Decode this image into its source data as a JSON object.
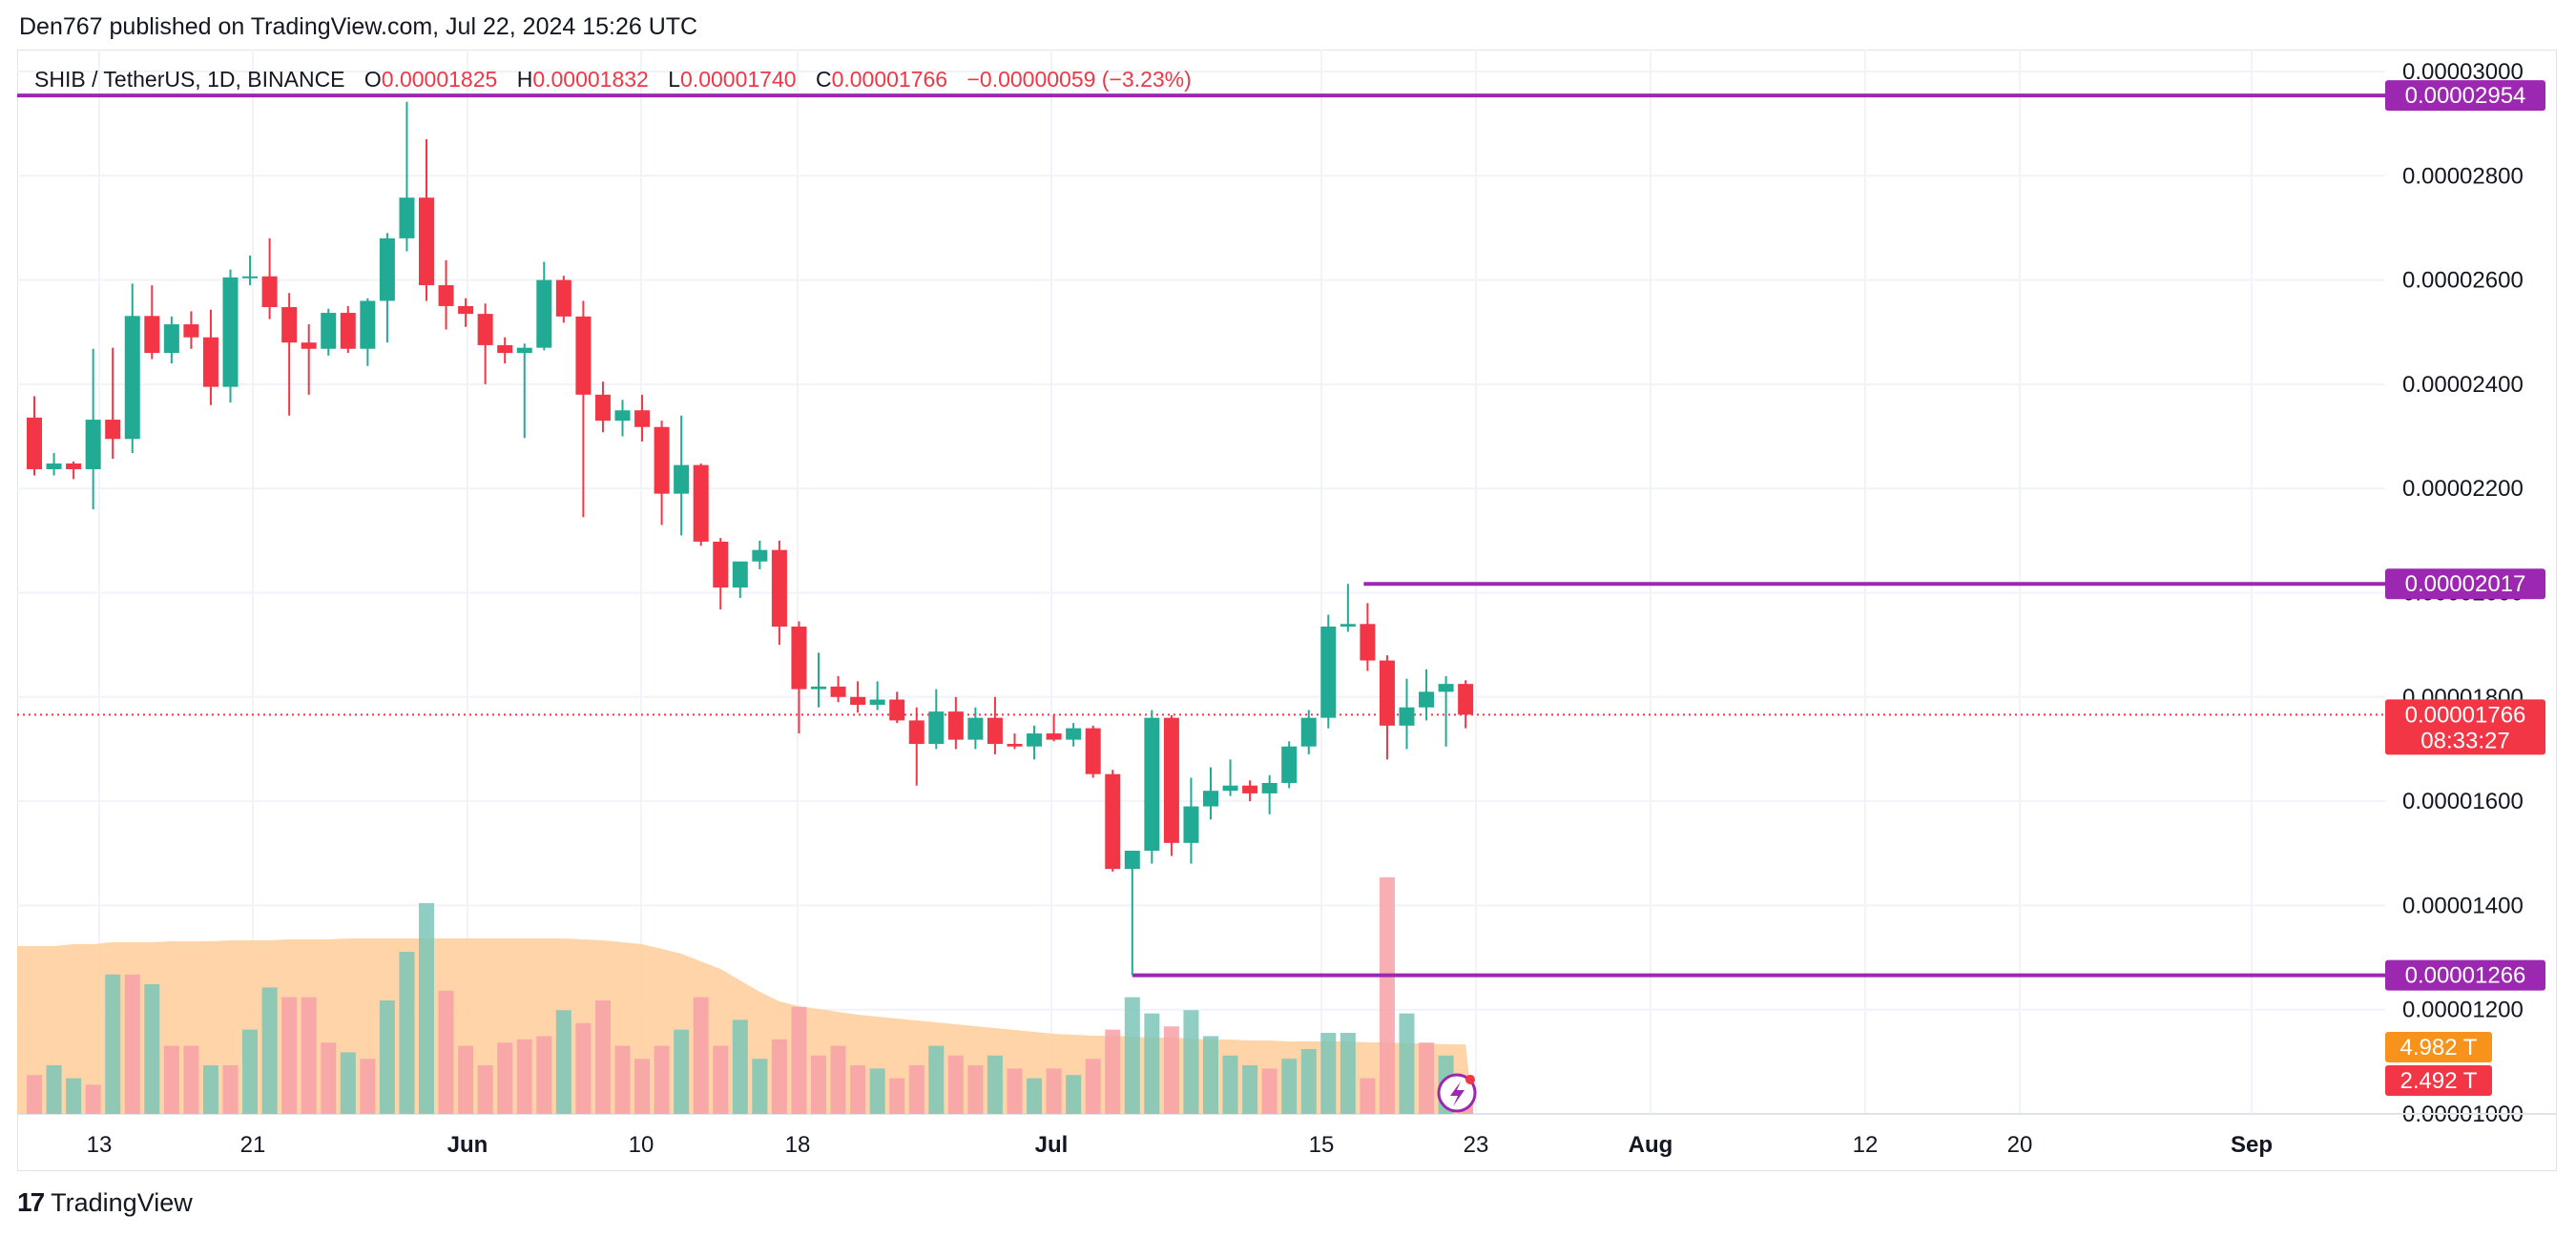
{
  "header": {
    "text": "Den767 published on TradingView.com, Jul 22, 2024 15:26 UTC"
  },
  "legend": {
    "symbol": "SHIB / TetherUS, 1D, BINANCE",
    "o_label": "O",
    "o_value": "0.00001825",
    "h_label": "H",
    "h_value": "0.00001832",
    "l_label": "L",
    "l_value": "0.00001740",
    "c_label": "C",
    "c_value": "0.00001766",
    "change": "−0.00000059 (−3.23%)"
  },
  "footer": {
    "brand": "TradingView",
    "logo_glyph": "17"
  },
  "colors": {
    "up": "#22ab94",
    "down": "#f23645",
    "level": "#9c27b0",
    "volume_ma": "#ffcc99"
  },
  "chart_data": {
    "type": "candlestick",
    "price_axis": {
      "ticks": [
        "0.00003000",
        "0.00002800",
        "0.00002600",
        "0.00002400",
        "0.00002200",
        "0.00002000",
        "0.00001800",
        "0.00001600",
        "0.00001400",
        "0.00001200",
        "0.00001000"
      ],
      "range": [
        1e-05,
        3e-05
      ]
    },
    "x_axis": {
      "labels": [
        "13",
        "21",
        "Jun",
        "10",
        "18",
        "Jul",
        "15",
        "23",
        "Aug",
        "12",
        "20",
        "Sep"
      ]
    },
    "levels": [
      {
        "name": "resistance-high",
        "value": 2.954e-05,
        "label": "0.00002954"
      },
      {
        "name": "resistance-mid",
        "value": 2.017e-05,
        "label": "0.00002017"
      },
      {
        "name": "support",
        "value": 1.266e-05,
        "label": "0.00001266"
      }
    ],
    "last_price": {
      "value": 1.766e-05,
      "label": "0.00001766",
      "countdown": "08:33:27"
    },
    "volume_labels": {
      "ma": "4.982 T",
      "volume": "2.492 T"
    },
    "candles": [
      {
        "o": 2.336e-05,
        "h": 2.377e-05,
        "l": 2.225e-05,
        "c": 2.237e-05
      },
      {
        "o": 2.237e-05,
        "h": 2.268e-05,
        "l": 2.225e-05,
        "c": 2.248e-05
      },
      {
        "o": 2.248e-05,
        "h": 2.252e-05,
        "l": 2.218e-05,
        "c": 2.237e-05
      },
      {
        "o": 2.237e-05,
        "h": 2.468e-05,
        "l": 2.16e-05,
        "c": 2.332e-05
      },
      {
        "o": 2.332e-05,
        "h": 2.47e-05,
        "l": 2.257e-05,
        "c": 2.295e-05
      },
      {
        "o": 2.295e-05,
        "h": 2.593e-05,
        "l": 2.268e-05,
        "c": 2.531e-05
      },
      {
        "o": 2.531e-05,
        "h": 2.59e-05,
        "l": 2.448e-05,
        "c": 2.46e-05
      },
      {
        "o": 2.46e-05,
        "h": 2.53e-05,
        "l": 2.44e-05,
        "c": 2.515e-05
      },
      {
        "o": 2.515e-05,
        "h": 2.54e-05,
        "l": 2.468e-05,
        "c": 2.49e-05
      },
      {
        "o": 2.49e-05,
        "h": 2.543e-05,
        "l": 2.36e-05,
        "c": 2.395e-05
      },
      {
        "o": 2.395e-05,
        "h": 2.62e-05,
        "l": 2.365e-05,
        "c": 2.605e-05
      },
      {
        "o": 2.605e-05,
        "h": 2.647e-05,
        "l": 2.59e-05,
        "c": 2.607e-05
      },
      {
        "o": 2.607e-05,
        "h": 2.68e-05,
        "l": 2.525e-05,
        "c": 2.548e-05
      },
      {
        "o": 2.548e-05,
        "h": 2.575e-05,
        "l": 2.34e-05,
        "c": 2.48e-05
      },
      {
        "o": 2.48e-05,
        "h": 2.515e-05,
        "l": 2.38e-05,
        "c": 2.468e-05
      },
      {
        "o": 2.468e-05,
        "h": 2.545e-05,
        "l": 2.455e-05,
        "c": 2.537e-05
      },
      {
        "o": 2.537e-05,
        "h": 2.55e-05,
        "l": 2.46e-05,
        "c": 2.468e-05
      },
      {
        "o": 2.468e-05,
        "h": 2.565e-05,
        "l": 2.435e-05,
        "c": 2.56e-05
      },
      {
        "o": 2.56e-05,
        "h": 2.69e-05,
        "l": 2.48e-05,
        "c": 2.68e-05
      },
      {
        "o": 2.68e-05,
        "h": 2.942e-05,
        "l": 2.655e-05,
        "c": 2.758e-05
      },
      {
        "o": 2.758e-05,
        "h": 2.87e-05,
        "l": 2.56e-05,
        "c": 2.59e-05
      },
      {
        "o": 2.59e-05,
        "h": 2.638e-05,
        "l": 2.505e-05,
        "c": 2.55e-05
      },
      {
        "o": 2.55e-05,
        "h": 2.565e-05,
        "l": 2.51e-05,
        "c": 2.535e-05
      },
      {
        "o": 2.535e-05,
        "h": 2.555e-05,
        "l": 2.4e-05,
        "c": 2.475e-05
      },
      {
        "o": 2.475e-05,
        "h": 2.49e-05,
        "l": 2.44e-05,
        "c": 2.46e-05
      },
      {
        "o": 2.46e-05,
        "h": 2.478e-05,
        "l": 2.297e-05,
        "c": 2.47e-05
      },
      {
        "o": 2.47e-05,
        "h": 2.635e-05,
        "l": 2.465e-05,
        "c": 2.6e-05
      },
      {
        "o": 2.6e-05,
        "h": 2.608e-05,
        "l": 2.518e-05,
        "c": 2.53e-05
      },
      {
        "o": 2.53e-05,
        "h": 2.56e-05,
        "l": 2.145e-05,
        "c": 2.38e-05
      },
      {
        "o": 2.38e-05,
        "h": 2.405e-05,
        "l": 2.308e-05,
        "c": 2.33e-05
      },
      {
        "o": 2.33e-05,
        "h": 2.37e-05,
        "l": 2.3e-05,
        "c": 2.35e-05
      },
      {
        "o": 2.35e-05,
        "h": 2.38e-05,
        "l": 2.29e-05,
        "c": 2.318e-05
      },
      {
        "o": 2.318e-05,
        "h": 2.33e-05,
        "l": 2.13e-05,
        "c": 2.19e-05
      },
      {
        "o": 2.19e-05,
        "h": 2.34e-05,
        "l": 2.11e-05,
        "c": 2.245e-05
      },
      {
        "o": 2.245e-05,
        "h": 2.248e-05,
        "l": 2.09e-05,
        "c": 2.098e-05
      },
      {
        "o": 2.098e-05,
        "h": 2.105e-05,
        "l": 1.968e-05,
        "c": 2.01e-05
      },
      {
        "o": 2.01e-05,
        "h": 2.055e-05,
        "l": 1.99e-05,
        "c": 2.06e-05
      },
      {
        "o": 2.06e-05,
        "h": 2.1e-05,
        "l": 2.045e-05,
        "c": 2.082e-05
      },
      {
        "o": 2.082e-05,
        "h": 2.1e-05,
        "l": 1.9e-05,
        "c": 1.935e-05
      },
      {
        "o": 1.935e-05,
        "h": 1.945e-05,
        "l": 1.73e-05,
        "c": 1.815e-05
      },
      {
        "o": 1.815e-05,
        "h": 1.885e-05,
        "l": 1.78e-05,
        "c": 1.82e-05
      },
      {
        "o": 1.82e-05,
        "h": 1.84e-05,
        "l": 1.79e-05,
        "c": 1.8e-05
      },
      {
        "o": 1.8e-05,
        "h": 1.83e-05,
        "l": 1.77e-05,
        "c": 1.785e-05
      },
      {
        "o": 1.785e-05,
        "h": 1.83e-05,
        "l": 1.775e-05,
        "c": 1.795e-05
      },
      {
        "o": 1.795e-05,
        "h": 1.81e-05,
        "l": 1.75e-05,
        "c": 1.755e-05
      },
      {
        "o": 1.755e-05,
        "h": 1.78e-05,
        "l": 1.63e-05,
        "c": 1.71e-05
      },
      {
        "o": 1.71e-05,
        "h": 1.815e-05,
        "l": 1.7e-05,
        "c": 1.772e-05
      },
      {
        "o": 1.772e-05,
        "h": 1.8e-05,
        "l": 1.7e-05,
        "c": 1.718e-05
      },
      {
        "o": 1.718e-05,
        "h": 1.78e-05,
        "l": 1.7e-05,
        "c": 1.76e-05
      },
      {
        "o": 1.76e-05,
        "h": 1.8e-05,
        "l": 1.69e-05,
        "c": 1.71e-05
      },
      {
        "o": 1.71e-05,
        "h": 1.73e-05,
        "l": 1.7e-05,
        "c": 1.705e-05
      },
      {
        "o": 1.705e-05,
        "h": 1.745e-05,
        "l": 1.68e-05,
        "c": 1.73e-05
      },
      {
        "o": 1.73e-05,
        "h": 1.765e-05,
        "l": 1.715e-05,
        "c": 1.718e-05
      },
      {
        "o": 1.718e-05,
        "h": 1.75e-05,
        "l": 1.705e-05,
        "c": 1.74e-05
      },
      {
        "o": 1.74e-05,
        "h": 1.745e-05,
        "l": 1.645e-05,
        "c": 1.652e-05
      },
      {
        "o": 1.652e-05,
        "h": 1.66e-05,
        "l": 1.465e-05,
        "c": 1.47e-05
      },
      {
        "o": 1.47e-05,
        "h": 1.505e-05,
        "l": 1.266e-05,
        "c": 1.505e-05
      },
      {
        "o": 1.505e-05,
        "h": 1.775e-05,
        "l": 1.48e-05,
        "c": 1.76e-05
      },
      {
        "o": 1.76e-05,
        "h": 1.765e-05,
        "l": 1.495e-05,
        "c": 1.52e-05
      },
      {
        "o": 1.52e-05,
        "h": 1.645e-05,
        "l": 1.48e-05,
        "c": 1.59e-05
      },
      {
        "o": 1.59e-05,
        "h": 1.665e-05,
        "l": 1.565e-05,
        "c": 1.62e-05
      },
      {
        "o": 1.62e-05,
        "h": 1.68e-05,
        "l": 1.61e-05,
        "c": 1.63e-05
      },
      {
        "o": 1.63e-05,
        "h": 1.64e-05,
        "l": 1.6e-05,
        "c": 1.615e-05
      },
      {
        "o": 1.615e-05,
        "h": 1.65e-05,
        "l": 1.575e-05,
        "c": 1.635e-05
      },
      {
        "o": 1.635e-05,
        "h": 1.715e-05,
        "l": 1.625e-05,
        "c": 1.705e-05
      },
      {
        "o": 1.705e-05,
        "h": 1.775e-05,
        "l": 1.69e-05,
        "c": 1.76e-05
      },
      {
        "o": 1.76e-05,
        "h": 1.958e-05,
        "l": 1.74e-05,
        "c": 1.935e-05
      },
      {
        "o": 1.935e-05,
        "h": 2.017e-05,
        "l": 1.925e-05,
        "c": 1.94e-05
      },
      {
        "o": 1.94e-05,
        "h": 1.98e-05,
        "l": 1.85e-05,
        "c": 1.87e-05
      },
      {
        "o": 1.87e-05,
        "h": 1.88e-05,
        "l": 1.68e-05,
        "c": 1.745e-05
      },
      {
        "o": 1.745e-05,
        "h": 1.835e-05,
        "l": 1.7e-05,
        "c": 1.78e-05
      },
      {
        "o": 1.78e-05,
        "h": 1.853e-05,
        "l": 1.755e-05,
        "c": 1.81e-05
      },
      {
        "o": 1.81e-05,
        "h": 1.84e-05,
        "l": 1.705e-05,
        "c": 1.825e-05
      },
      {
        "o": 1.825e-05,
        "h": 1.832e-05,
        "l": 1.74e-05,
        "c": 1.766e-05
      }
    ],
    "volume": [
      {
        "v": 0.24,
        "up": false
      },
      {
        "v": 0.3,
        "up": true
      },
      {
        "v": 0.22,
        "up": true
      },
      {
        "v": 0.18,
        "up": false
      },
      {
        "v": 0.86,
        "up": true
      },
      {
        "v": 0.86,
        "up": false
      },
      {
        "v": 0.8,
        "up": true
      },
      {
        "v": 0.42,
        "up": false
      },
      {
        "v": 0.42,
        "up": false
      },
      {
        "v": 0.3,
        "up": true
      },
      {
        "v": 0.3,
        "up": false
      },
      {
        "v": 0.52,
        "up": true
      },
      {
        "v": 0.78,
        "up": true
      },
      {
        "v": 0.72,
        "up": false
      },
      {
        "v": 0.72,
        "up": false
      },
      {
        "v": 0.44,
        "up": false
      },
      {
        "v": 0.38,
        "up": true
      },
      {
        "v": 0.34,
        "up": false
      },
      {
        "v": 0.7,
        "up": true
      },
      {
        "v": 1.0,
        "up": true
      },
      {
        "v": 1.3,
        "up": true
      },
      {
        "v": 0.76,
        "up": false
      },
      {
        "v": 0.42,
        "up": false
      },
      {
        "v": 0.3,
        "up": false
      },
      {
        "v": 0.44,
        "up": false
      },
      {
        "v": 0.46,
        "up": false
      },
      {
        "v": 0.48,
        "up": false
      },
      {
        "v": 0.64,
        "up": true
      },
      {
        "v": 0.56,
        "up": false
      },
      {
        "v": 0.7,
        "up": false
      },
      {
        "v": 0.42,
        "up": false
      },
      {
        "v": 0.34,
        "up": false
      },
      {
        "v": 0.42,
        "up": false
      },
      {
        "v": 0.52,
        "up": true
      },
      {
        "v": 0.72,
        "up": false
      },
      {
        "v": 0.42,
        "up": false
      },
      {
        "v": 0.58,
        "up": true
      },
      {
        "v": 0.34,
        "up": true
      },
      {
        "v": 0.46,
        "up": false
      },
      {
        "v": 0.66,
        "up": false
      },
      {
        "v": 0.36,
        "up": false
      },
      {
        "v": 0.42,
        "up": false
      },
      {
        "v": 0.3,
        "up": false
      },
      {
        "v": 0.28,
        "up": true
      },
      {
        "v": 0.22,
        "up": false
      },
      {
        "v": 0.3,
        "up": false
      },
      {
        "v": 0.42,
        "up": true
      },
      {
        "v": 0.36,
        "up": false
      },
      {
        "v": 0.3,
        "up": false
      },
      {
        "v": 0.36,
        "up": true
      },
      {
        "v": 0.28,
        "up": false
      },
      {
        "v": 0.22,
        "up": true
      },
      {
        "v": 0.28,
        "up": false
      },
      {
        "v": 0.24,
        "up": true
      },
      {
        "v": 0.34,
        "up": false
      },
      {
        "v": 0.52,
        "up": false
      },
      {
        "v": 0.72,
        "up": true
      },
      {
        "v": 0.62,
        "up": true
      },
      {
        "v": 0.54,
        "up": false
      },
      {
        "v": 0.64,
        "up": true
      },
      {
        "v": 0.48,
        "up": true
      },
      {
        "v": 0.36,
        "up": true
      },
      {
        "v": 0.3,
        "up": true
      },
      {
        "v": 0.28,
        "up": false
      },
      {
        "v": 0.34,
        "up": true
      },
      {
        "v": 0.4,
        "up": true
      },
      {
        "v": 0.5,
        "up": true
      },
      {
        "v": 0.5,
        "up": true
      },
      {
        "v": 0.22,
        "up": false
      },
      {
        "v": 1.46,
        "up": false
      },
      {
        "v": 0.62,
        "up": true
      },
      {
        "v": 0.44,
        "up": false
      },
      {
        "v": 0.36,
        "up": true
      },
      {
        "v": 0.24,
        "up": false
      }
    ]
  }
}
